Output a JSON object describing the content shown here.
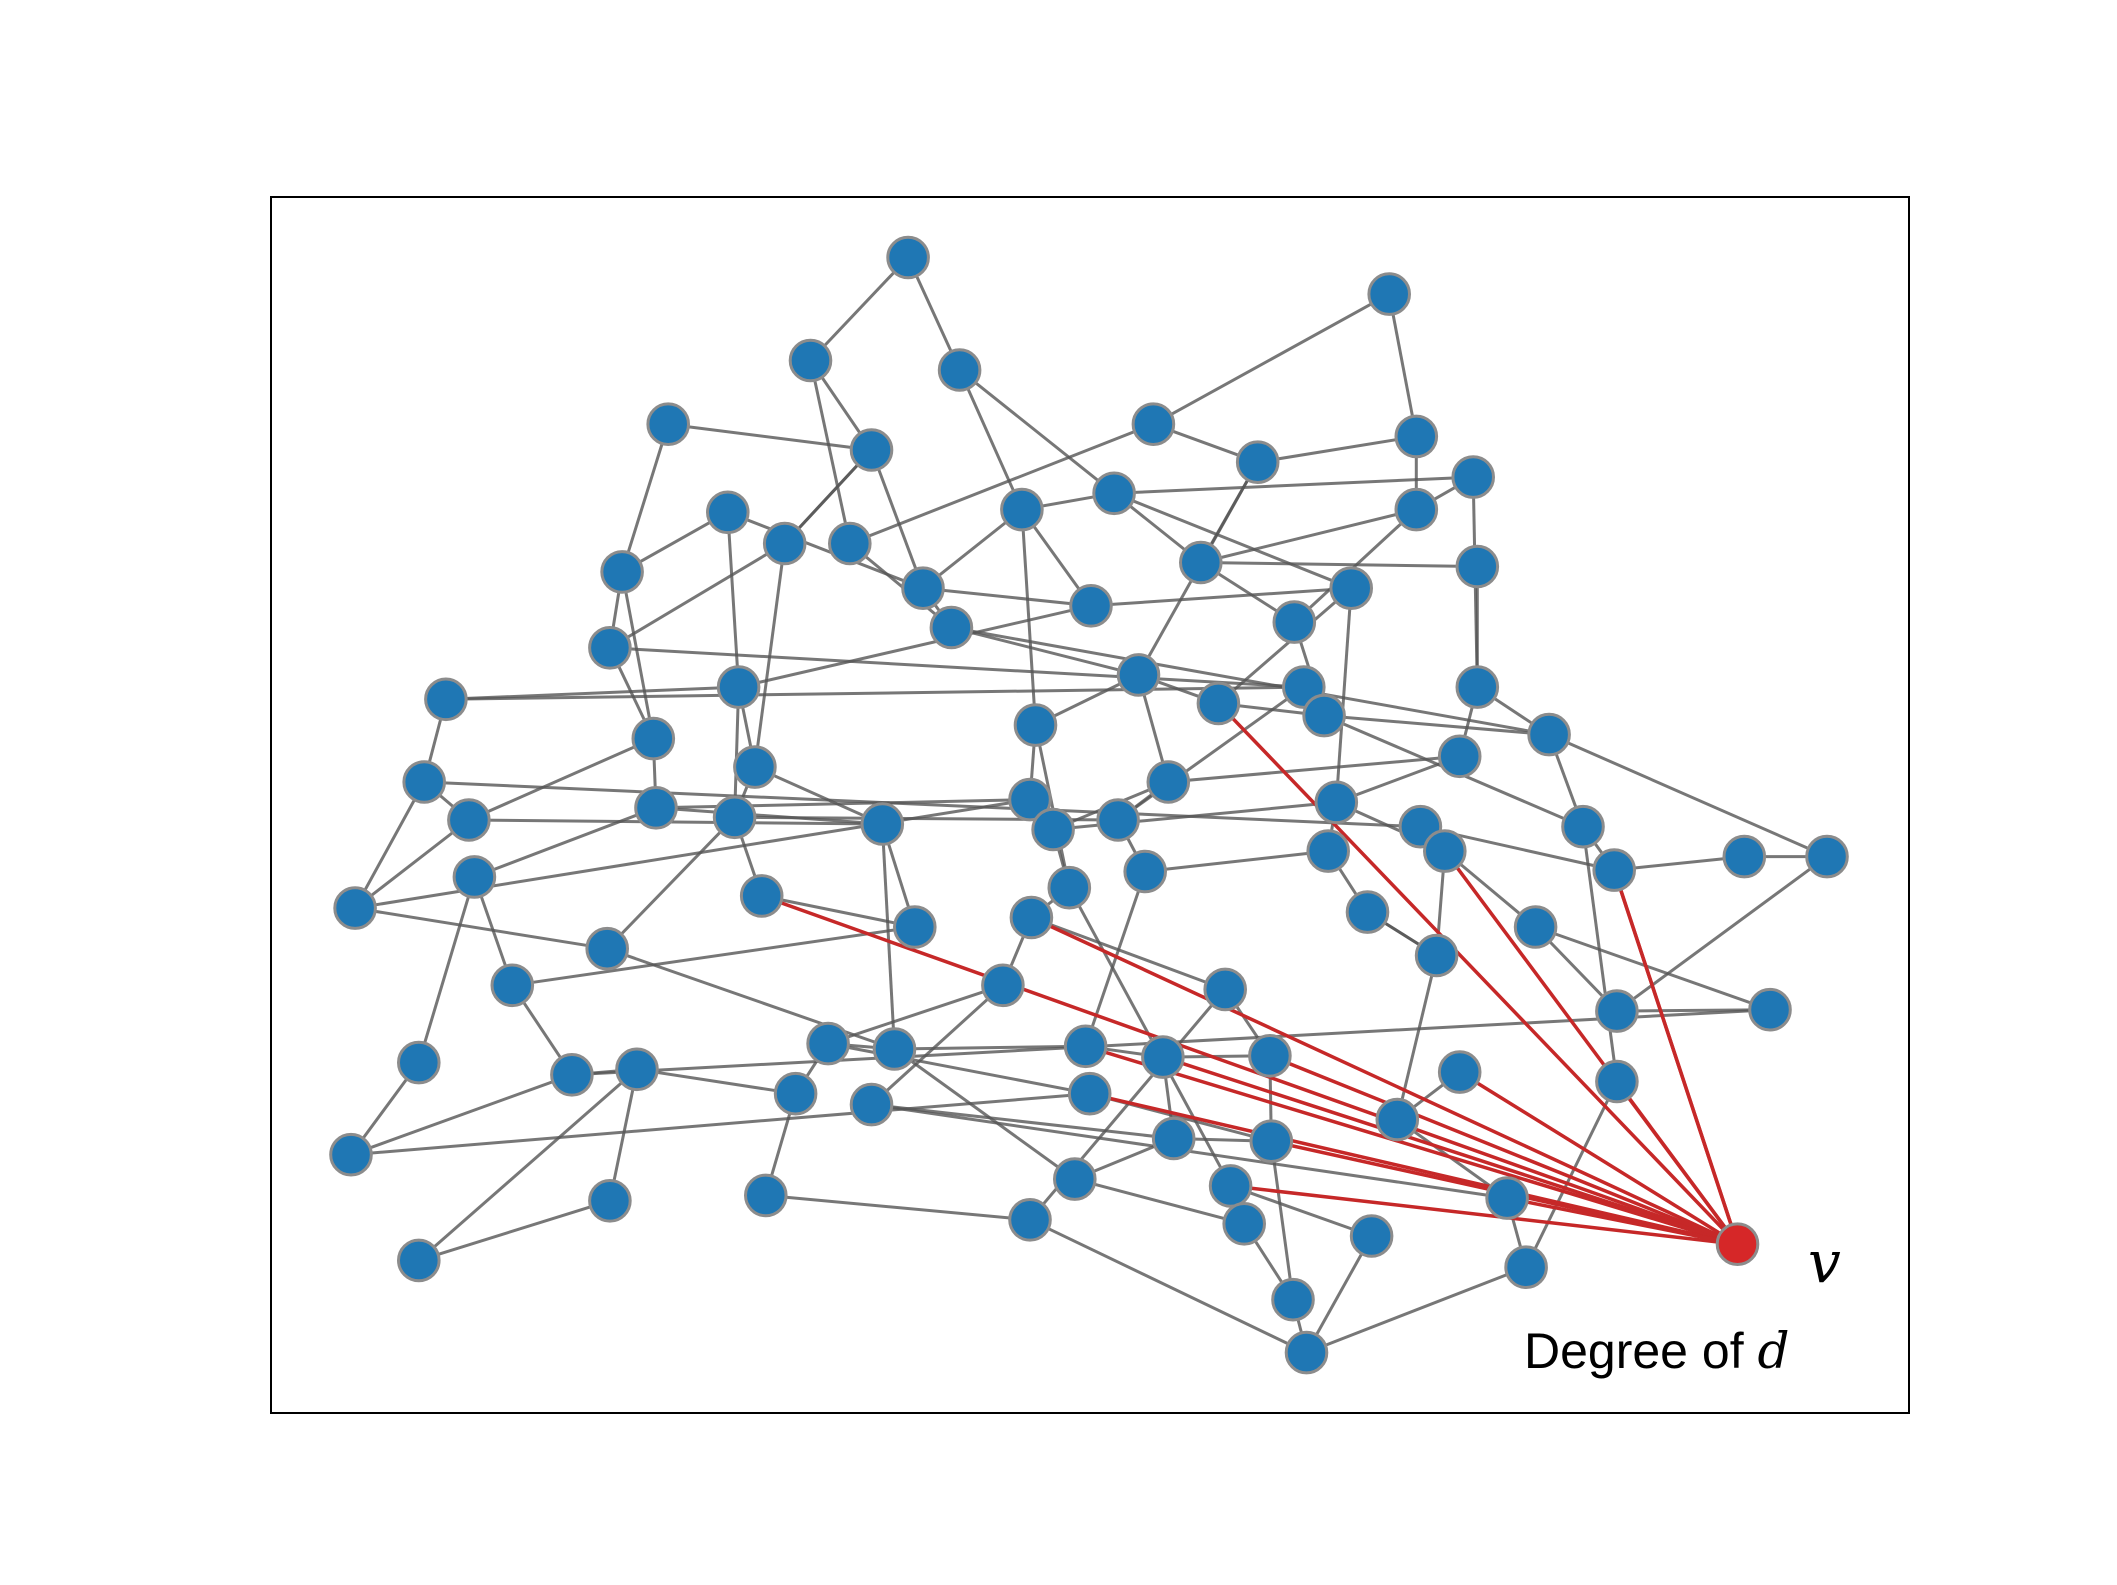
{
  "diagram": {
    "highlight_node_label": "v",
    "caption_prefix": "Degree of ",
    "caption_variable": "d",
    "colors": {
      "node": "#1f77b4",
      "node_outline": "#8c8c8c",
      "highlight_node": "#d62728",
      "edge": "#555555",
      "highlight_edge": "#c62828",
      "frame": "#000000"
    }
  }
}
